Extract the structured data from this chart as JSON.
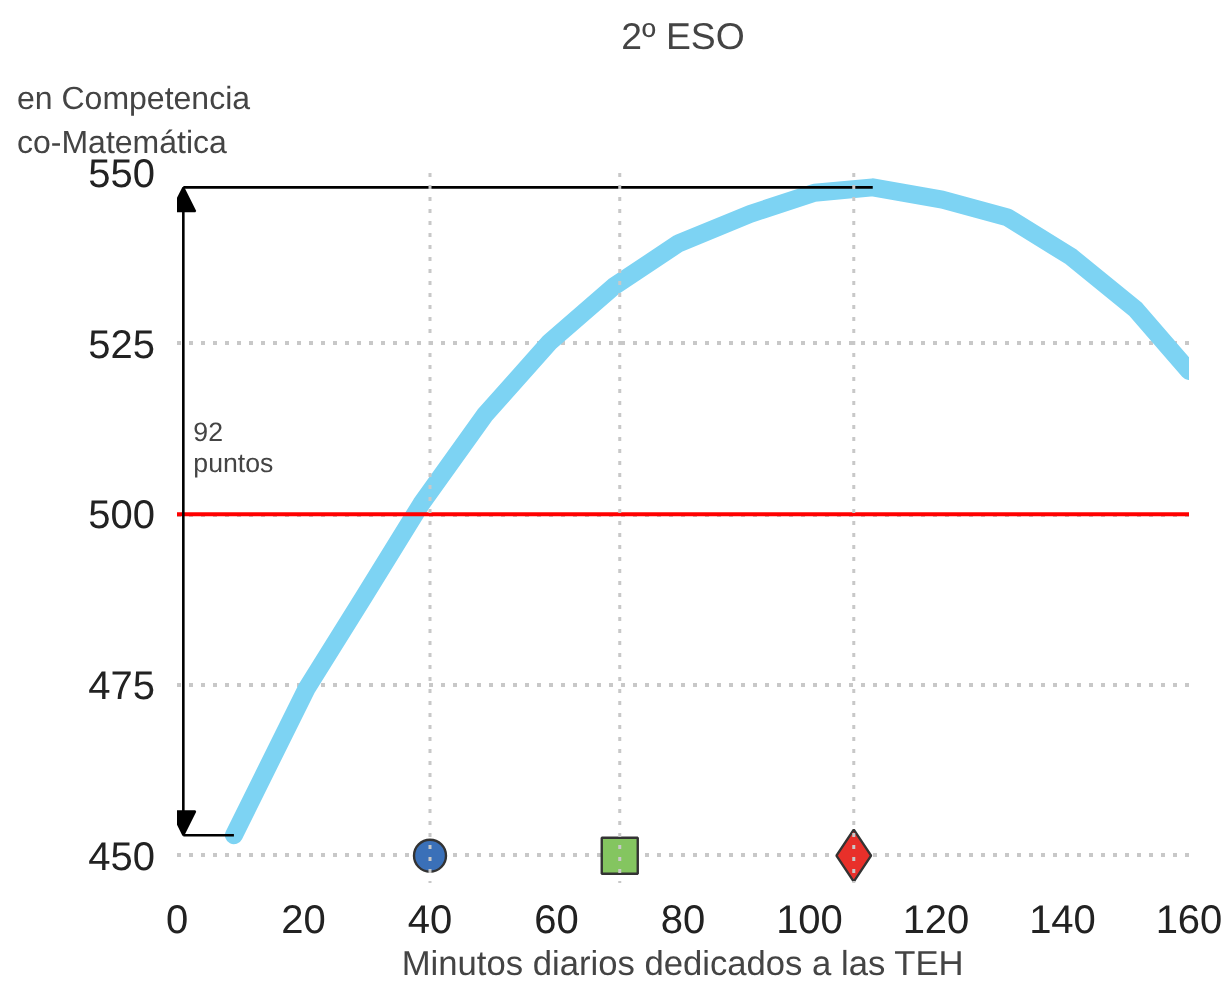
{
  "chart_data": {
    "type": "line",
    "title": "2º ESO",
    "ylabel": "en Competencia\nco-Matemática",
    "xlabel": "Minutos diarios dedicados a las TEH",
    "xlim": [
      0,
      160
    ],
    "xticks": [
      0,
      20,
      40,
      60,
      80,
      100,
      120,
      140,
      160
    ],
    "ylim": [
      446,
      550
    ],
    "yticks": [
      450,
      475,
      500,
      525,
      550
    ],
    "grid": "y",
    "series": [
      {
        "color": "#7dd3f3",
        "x": [
          9,
          20.5,
          29.6,
          38.6,
          48.7,
          58.9,
          69.1,
          79.3,
          90.6,
          100.8,
          110,
          121,
          131.3,
          141.4,
          151.6,
          160
        ],
        "values": [
          453,
          474.5,
          488,
          501.5,
          514.6,
          525.2,
          533.4,
          539.7,
          544,
          547.1,
          547.9,
          546.1,
          543.5,
          537.7,
          530,
          521
        ]
      },
      {
        "type": "scatter",
        "marker": "circle",
        "color": "#3a70b8",
        "x": [
          40
        ],
        "values": [
          450
        ]
      },
      {
        "type": "scatter",
        "marker": "square",
        "color": "#84c560",
        "x": [
          70
        ],
        "values": [
          450
        ]
      },
      {
        "type": "scatter",
        "marker": "diamond",
        "color": "#e8302a",
        "x": [
          107
        ],
        "values": [
          450
        ]
      }
    ],
    "ref_lines": [
      {
        "axis": "y",
        "value": 500,
        "color": "#ff0000",
        "line_style": "solid"
      },
      {
        "axis": "x",
        "value": 40,
        "color": "#c8c8c8",
        "line_style": "dotted"
      },
      {
        "axis": "x",
        "value": 70,
        "color": "#c8c8c8",
        "line_style": "dotted"
      },
      {
        "axis": "x",
        "value": 107,
        "color": "#c8c8c8",
        "line_style": "dotted"
      }
    ],
    "annotations": [
      "92\npuntos"
    ]
  }
}
